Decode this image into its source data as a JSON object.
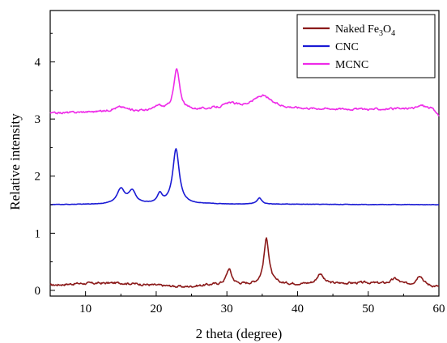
{
  "chart_data": {
    "type": "line",
    "title": "",
    "xlabel": "2 theta (degree)",
    "ylabel": "Relative intensity",
    "xlim": [
      5,
      60
    ],
    "ylim": [
      -0.1,
      4.9
    ],
    "x_ticks": [
      10,
      20,
      30,
      40,
      50,
      60
    ],
    "y_ticks": [
      0,
      1,
      2,
      3,
      4
    ],
    "grid": false,
    "legend_position": "top-right",
    "series": [
      {
        "name": "Naked Fe3O4",
        "legend_html": [
          "Naked Fe",
          "3",
          "O",
          "4"
        ],
        "color": "#8b1a1a",
        "baseline": 0.09,
        "peaks": [
          [
            30.3,
            0.27,
            0.45
          ],
          [
            35.6,
            0.8,
            0.45
          ],
          [
            43.2,
            0.18,
            0.5
          ],
          [
            53.8,
            0.1,
            0.7
          ],
          [
            57.3,
            0.19,
            0.6
          ],
          [
            62.8,
            0.25,
            0.6
          ]
        ],
        "noise": 0.03,
        "background": [
          [
            5,
            0.09
          ],
          [
            9,
            0.12
          ],
          [
            15,
            0.13
          ],
          [
            20,
            0.09
          ],
          [
            24,
            0.06
          ],
          [
            28,
            0.1
          ],
          [
            40,
            0.11
          ],
          [
            50,
            0.13
          ],
          [
            60,
            0.05
          ]
        ]
      },
      {
        "name": "CNC",
        "legend_html": [
          "CNC"
        ],
        "color": "#1a1ad4",
        "baseline": 1.5,
        "peaks": [
          [
            15.0,
            0.26,
            0.65
          ],
          [
            16.6,
            0.22,
            0.6
          ],
          [
            20.5,
            0.16,
            0.4
          ],
          [
            22.8,
            0.96,
            0.55
          ],
          [
            34.6,
            0.11,
            0.4
          ]
        ],
        "noise": 0.005,
        "background": [
          [
            5,
            1.5
          ],
          [
            20,
            1.51
          ],
          [
            30,
            1.51
          ],
          [
            60,
            1.5
          ]
        ]
      },
      {
        "name": "MCNC",
        "legend_html": [
          "MCNC"
        ],
        "color": "#ee2ae8",
        "baseline": 3.1,
        "peaks": [
          [
            14.9,
            0.08,
            1.2
          ],
          [
            20.3,
            0.08,
            0.6
          ],
          [
            22.9,
            0.72,
            0.5
          ],
          [
            30.5,
            0.07,
            1.0
          ],
          [
            35.0,
            0.22,
            1.6
          ],
          [
            57.6,
            0.06,
            0.7
          ]
        ],
        "noise": 0.025,
        "background": [
          [
            5,
            3.1
          ],
          [
            10,
            3.12
          ],
          [
            17,
            3.13
          ],
          [
            25,
            3.15
          ],
          [
            30,
            3.19
          ],
          [
            40,
            3.18
          ],
          [
            50,
            3.17
          ],
          [
            59,
            3.18
          ],
          [
            60,
            3.06
          ]
        ]
      }
    ]
  }
}
